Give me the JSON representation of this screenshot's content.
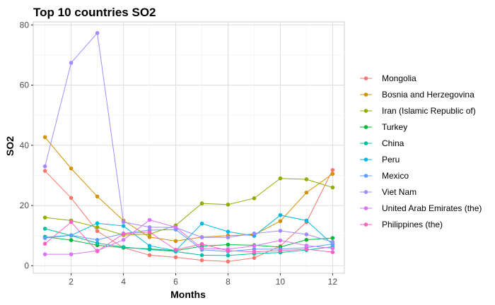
{
  "chart_data": {
    "type": "line",
    "title": "Top 10 countries SO2",
    "xlabel": "Months",
    "ylabel": "SO2",
    "x": [
      1,
      2,
      3,
      4,
      5,
      6,
      7,
      8,
      9,
      10,
      11,
      12
    ],
    "xlim": [
      0.55,
      12.45
    ],
    "ylim": [
      -2.5,
      81
    ],
    "xticks": [
      2,
      4,
      6,
      8,
      10,
      12
    ],
    "yticks": [
      0,
      20,
      40,
      60,
      80
    ],
    "grid": true,
    "legend_position": "right",
    "series": [
      {
        "name": "Mongolia",
        "color": "#F8766D",
        "values": [
          31.5,
          22.5,
          11.5,
          6,
          3.5,
          2.8,
          1.8,
          1.4,
          2.6,
          6.5,
          14.5,
          31.8
        ]
      },
      {
        "name": "Bosnia and Herzegovina",
        "color": "#D39200",
        "values": [
          42.7,
          32.3,
          23,
          15,
          9.5,
          8.2,
          9.5,
          10,
          10.3,
          14.8,
          24.3,
          30.5
        ]
      },
      {
        "name": "Iran (Islamic Republic of)",
        "color": "#93AA00",
        "values": [
          16,
          15,
          12.8,
          10.2,
          10.5,
          13.4,
          20.7,
          20.3,
          22.4,
          29,
          28.7,
          26
        ]
      },
      {
        "name": "Turkey",
        "color": "#00BA38",
        "values": [
          9.6,
          8.5,
          6.8,
          6,
          5.6,
          5,
          6.5,
          7,
          6.8,
          6.2,
          8.6,
          9.2
        ]
      },
      {
        "name": "China",
        "color": "#00C19F",
        "values": [
          12.3,
          10,
          7.5,
          6.2,
          5.4,
          4.7,
          3.5,
          3.4,
          4,
          4.4,
          5.2,
          6.3
        ]
      },
      {
        "name": "Peru",
        "color": "#00B9E3",
        "values": [
          9.4,
          10.1,
          14.1,
          13.2,
          6.6,
          5,
          14,
          11.3,
          9.9,
          16.8,
          15,
          7.1
        ]
      },
      {
        "name": "Mexico",
        "color": "#619CFF",
        "values": [
          9.2,
          10.1,
          8.6,
          10.7,
          11.8,
          12,
          5.3,
          4.7,
          5.5,
          5.5,
          6,
          7.2
        ]
      },
      {
        "name": "Viet Nam",
        "color": "#A58AFF",
        "values": [
          33,
          67.4,
          77.3,
          14.5,
          12.8,
          12.7,
          9.4,
          9.4,
          10.7,
          11.6,
          10.4,
          7.9
        ]
      },
      {
        "name": "United Arab Emirates (the)",
        "color": "#DB72FB",
        "values": [
          3.8,
          3.8,
          5,
          8.6,
          15.2,
          12.8,
          5.8,
          5.5,
          6.6,
          8.4,
          6.7,
          5.8
        ]
      },
      {
        "name": "Philippines (the)",
        "color": "#FF61C3",
        "values": [
          7.3,
          14.5,
          4.8,
          10.6,
          11.2,
          5.3,
          7.2,
          5,
          4.6,
          5,
          5.5,
          4.5
        ]
      }
    ]
  }
}
